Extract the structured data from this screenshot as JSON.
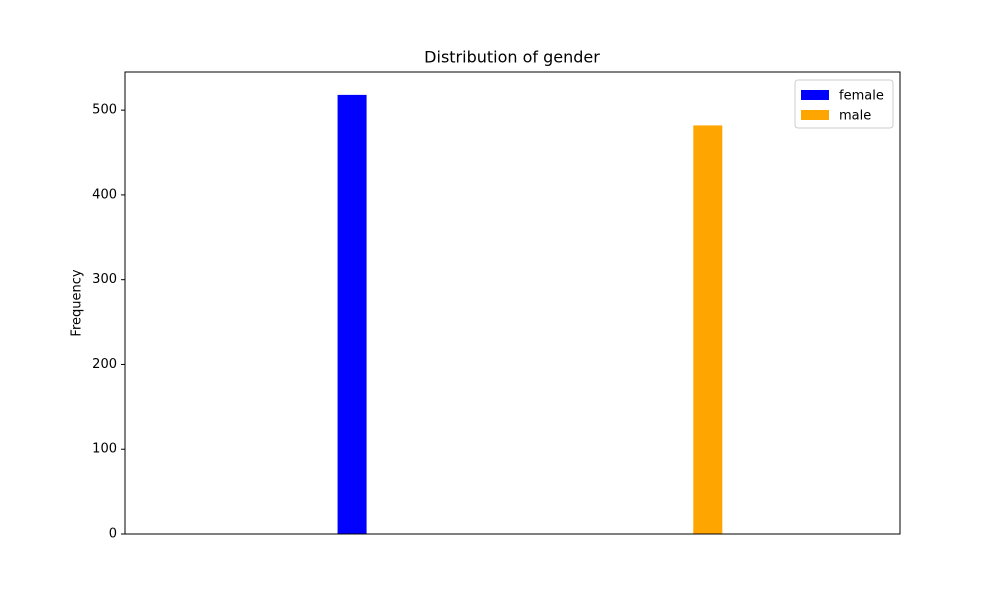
{
  "chart_data": {
    "type": "bar",
    "title": "Distribution of gender",
    "ylabel": "Frequency",
    "series": [
      {
        "name": "female",
        "color": "blue",
        "values": [
          518
        ]
      },
      {
        "name": "male",
        "color": "orange",
        "values": [
          482
        ]
      }
    ],
    "ylim": [
      0,
      545
    ],
    "yticks": [
      0,
      100,
      200,
      300,
      400,
      500
    ],
    "legend": "upper right"
  }
}
